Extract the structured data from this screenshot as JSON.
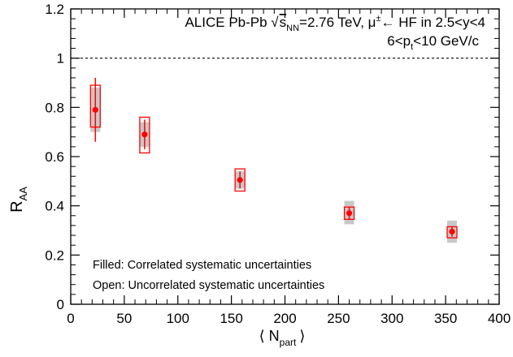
{
  "chart_data": {
    "type": "scatter",
    "title": "",
    "xlabel": "⟨ N",
    "xlabel_sub": "part",
    "xlabel_end": "⟩",
    "ylabel": "R",
    "ylabel_sub": "AA",
    "xlim": [
      0,
      400
    ],
    "ylim": [
      0,
      1.2
    ],
    "x_ticks": [
      0,
      50,
      100,
      150,
      200,
      250,
      300,
      350,
      400
    ],
    "y_ticks": [
      0,
      0.2,
      0.4,
      0.6,
      0.8,
      1,
      1.2
    ],
    "x_tick_labels": [
      "0",
      "50",
      "100",
      "150",
      "200",
      "250",
      "300",
      "350",
      "400"
    ],
    "y_tick_labels": [
      "0",
      "0.2",
      "0.4",
      "0.6",
      "0.8",
      "1",
      "1.2"
    ],
    "reference_line": {
      "y": 1,
      "style": "dashed",
      "color": "#000000"
    },
    "marker_color": "#ff0000",
    "correlated_box_color": "#c8c8c8",
    "annotations": {
      "line1_a": "ALICE Pb-Pb ",
      "line1_sqrt": "√",
      "line1_s": "s",
      "line1_nn": "NN",
      "line1_b": "=2.76 TeV, μ",
      "line1_pm": "±",
      "line1_c": "← HF in 2.5<y<4",
      "line2_a": "6<p",
      "line2_t": "t",
      "line2_b": "<10 GeV/c",
      "filled_note": "Filled: Correlated systematic uncertainties",
      "open_note": "Open: Uncorrelated systematic uncertainties"
    },
    "series": [
      {
        "points": [
          {
            "x": 23,
            "y": 0.79,
            "stat_low": 0.66,
            "stat_high": 0.92,
            "unc_box": [
              0.72,
              0.89
            ],
            "corr_box": [
              0.7,
              0.88
            ]
          },
          {
            "x": 69,
            "y": 0.69,
            "stat_low": 0.63,
            "stat_high": 0.75,
            "unc_box": [
              0.615,
              0.76
            ],
            "corr_box": [
              0.64,
              0.74
            ]
          },
          {
            "x": 158,
            "y": 0.505,
            "stat_low": 0.47,
            "stat_high": 0.54,
            "unc_box": [
              0.46,
              0.55
            ],
            "corr_box": [
              0.47,
              0.54
            ]
          },
          {
            "x": 260,
            "y": 0.37,
            "stat_low": 0.345,
            "stat_high": 0.395,
            "unc_box": [
              0.345,
              0.395
            ],
            "corr_box": [
              0.325,
              0.42
            ]
          },
          {
            "x": 356,
            "y": 0.295,
            "stat_low": 0.275,
            "stat_high": 0.315,
            "unc_box": [
              0.27,
              0.315
            ],
            "corr_box": [
              0.25,
              0.34
            ]
          }
        ]
      }
    ]
  }
}
